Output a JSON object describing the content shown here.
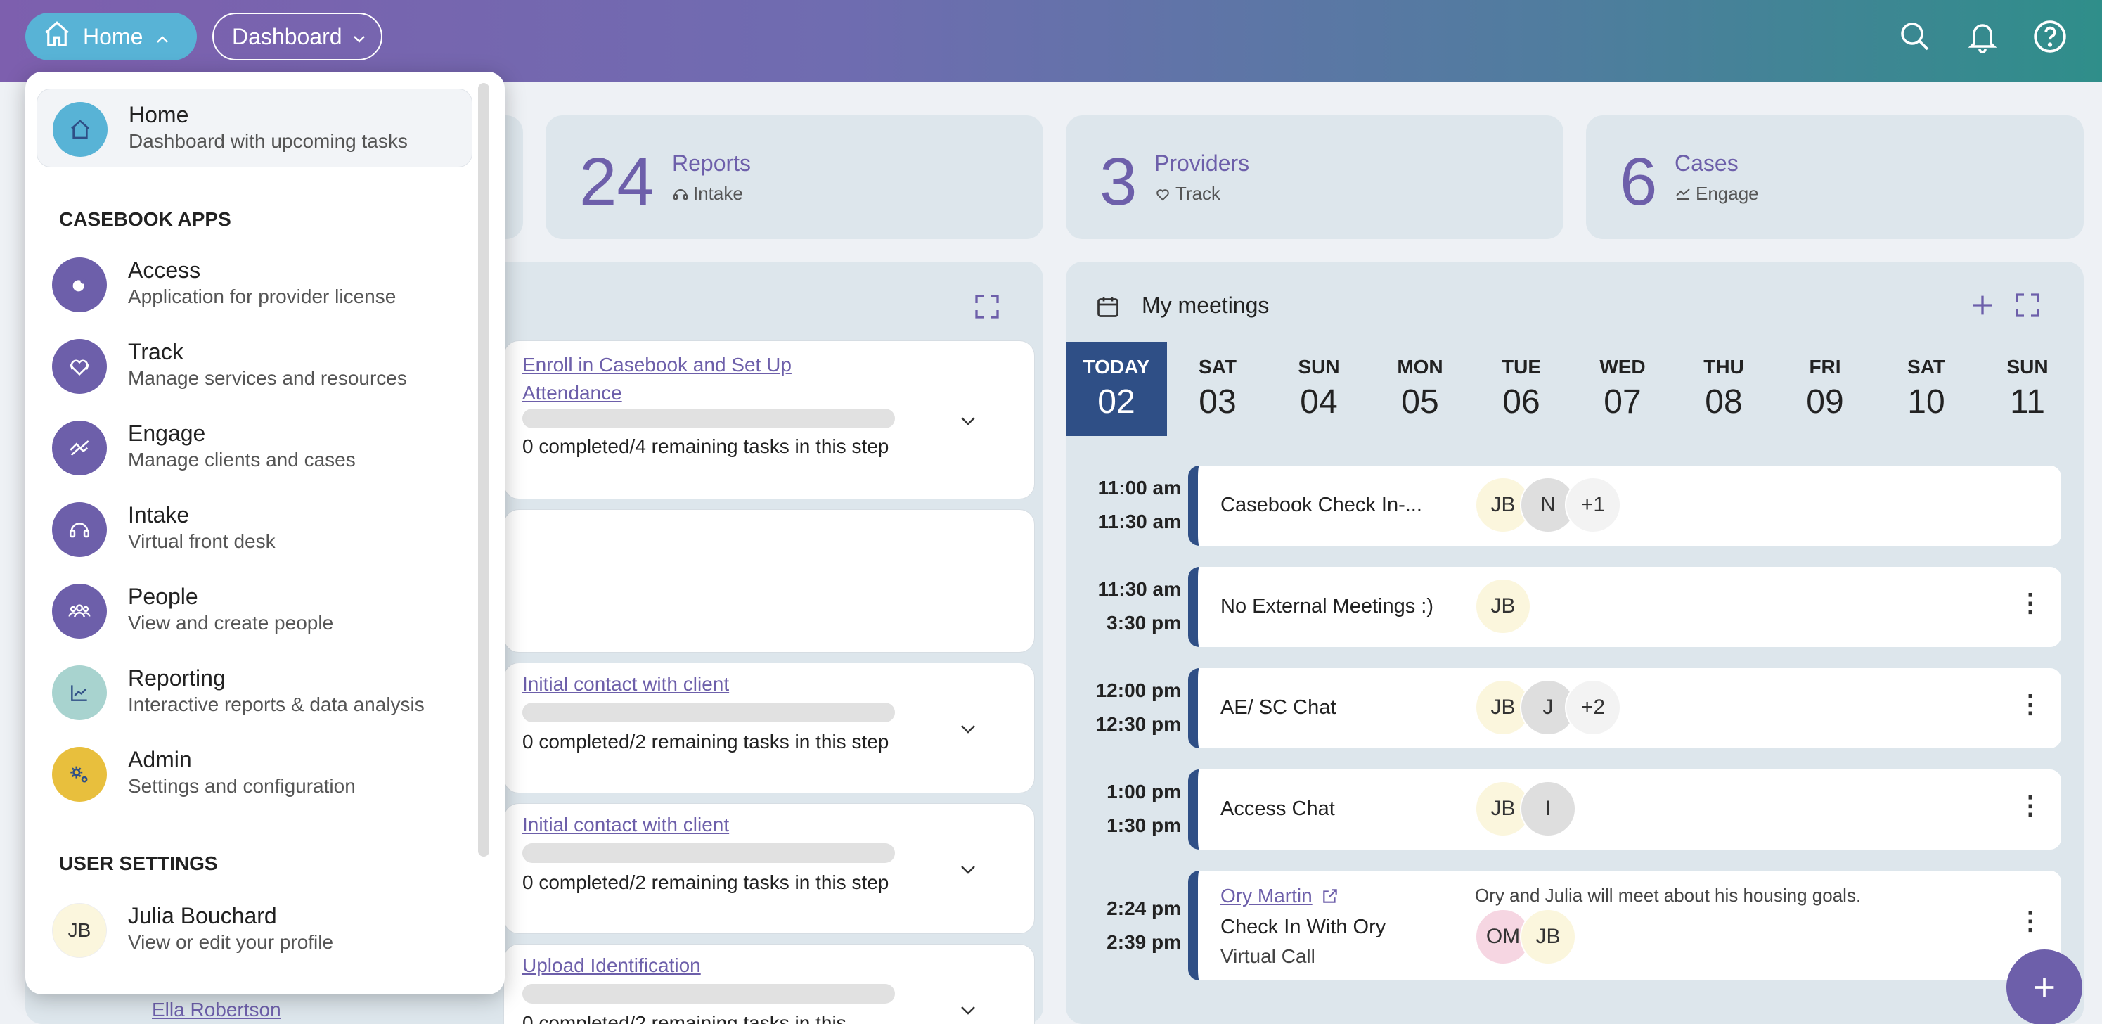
{
  "header": {
    "home_label": "Home",
    "dashboard_label": "Dashboard",
    "icons": [
      "home-icon",
      "search-icon",
      "bell-icon",
      "help-icon"
    ]
  },
  "stats": [
    {
      "value": "24",
      "label": "Reports",
      "sub": "Intake"
    },
    {
      "value": "3",
      "label": "Providers",
      "sub": "Track"
    },
    {
      "value": "6",
      "label": "Cases",
      "sub": "Engage"
    }
  ],
  "tasks": [
    {
      "link": "Enroll in Casebook and Set Up Attendance",
      "status": "0 completed/4 remaining tasks in this step"
    },
    {
      "link": "Initial contact with client",
      "status": "0 completed/2 remaining tasks in this step"
    },
    {
      "link": "Initial contact with client",
      "status": "0 completed/2 remaining tasks in this step"
    },
    {
      "link": "Upload Identification",
      "status": "0 completed/2 remaining tasks in this"
    }
  ],
  "bottom_link": "Ella Robertson",
  "meetings": {
    "title": "My meetings",
    "days": [
      {
        "name": "TODAY",
        "date": "02"
      },
      {
        "name": "SAT",
        "date": "03"
      },
      {
        "name": "SUN",
        "date": "04"
      },
      {
        "name": "MON",
        "date": "05"
      },
      {
        "name": "TUE",
        "date": "06"
      },
      {
        "name": "WED",
        "date": "07"
      },
      {
        "name": "THU",
        "date": "08"
      },
      {
        "name": "FRI",
        "date": "09"
      },
      {
        "name": "SAT",
        "date": "10"
      },
      {
        "name": "SUN",
        "date": "11"
      }
    ],
    "items": [
      {
        "start": "11:00 am",
        "end": "11:30 am",
        "title": "Casebook Check In-...",
        "avatars": [
          "JB",
          "N",
          "+1"
        ]
      },
      {
        "start": "11:30 am",
        "end": "3:30 pm",
        "title": "No External Meetings :)",
        "avatars": [
          "JB"
        ]
      },
      {
        "start": "12:00 pm",
        "end": "12:30 pm",
        "title": "AE/ SC Chat",
        "avatars": [
          "JB",
          "J",
          "+2"
        ]
      },
      {
        "start": "1:00 pm",
        "end": "1:30 pm",
        "title": "Access Chat",
        "avatars": [
          "JB",
          "I"
        ]
      },
      {
        "start": "2:24 pm",
        "end": "2:39 pm",
        "person": "Ory Martin",
        "title": "Check In With Ory",
        "subtitle": "Virtual Call",
        "note": "Ory and Julia will meet about his housing goals.",
        "avatars": [
          "OM",
          "JB"
        ]
      }
    ]
  },
  "menu": {
    "home": {
      "title": "Home",
      "desc": "Dashboard with upcoming tasks"
    },
    "apps_heading": "CASEBOOK APPS",
    "apps": [
      {
        "title": "Access",
        "desc": "Application for provider license",
        "color": "#6d5faa"
      },
      {
        "title": "Track",
        "desc": "Manage services and resources",
        "color": "#6d5faa"
      },
      {
        "title": "Engage",
        "desc": "Manage clients and cases",
        "color": "#6d5faa"
      },
      {
        "title": "Intake",
        "desc": "Virtual front desk",
        "color": "#6d5faa"
      },
      {
        "title": "People",
        "desc": "View and create people",
        "color": "#6d5faa"
      },
      {
        "title": "Reporting",
        "desc": "Interactive reports & data analysis",
        "color": "#a8d3cf"
      },
      {
        "title": "Admin",
        "desc": "Settings and configuration",
        "color": "#e8bf3d"
      }
    ],
    "user_heading": "USER SETTINGS",
    "user": {
      "initials": "JB",
      "name": "Julia Bouchard",
      "desc": "View or edit your profile"
    }
  }
}
